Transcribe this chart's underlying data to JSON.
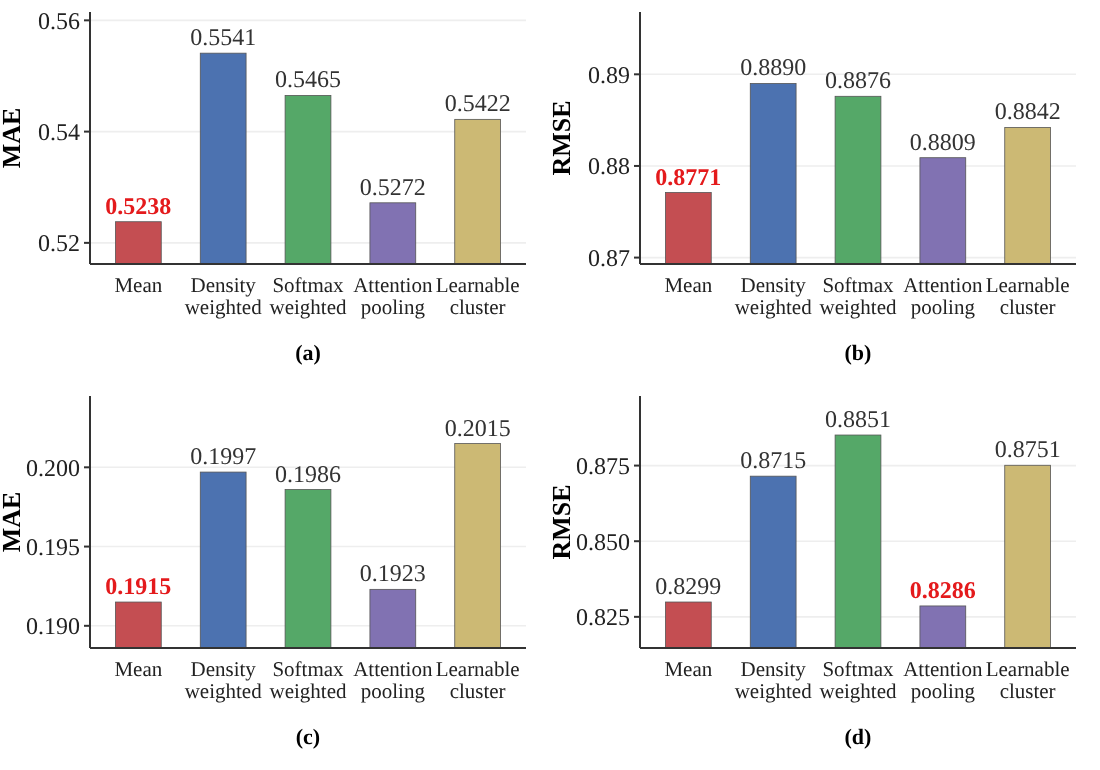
{
  "chart_data": [
    {
      "type": "bar",
      "ylabel": "MAE",
      "categories": [
        "Mean",
        "Density weighted",
        "Softmax weighted",
        "Attention pooling",
        "Learnable cluster"
      ],
      "values": [
        0.5238,
        0.5541,
        0.5465,
        0.5272,
        0.5422
      ],
      "colors": [
        "#c44e52",
        "#4c72b0",
        "#55a868",
        "#8172b2",
        "#ccb974"
      ],
      "ylim": [
        0.5162,
        0.5615
      ],
      "yticks": [
        {
          "value": 0.52,
          "label": "0.52"
        },
        {
          "value": 0.54,
          "label": "0.54"
        },
        {
          "value": 0.56,
          "label": "0.56"
        }
      ],
      "grid": "y",
      "data_labels": true,
      "annotations": [
        "(a)"
      ]
    },
    {
      "type": "bar",
      "ylabel": "RMSE",
      "categories": [
        "Mean",
        "Density weighted",
        "Softmax weighted",
        "Attention pooling",
        "Learnable cluster"
      ],
      "values": [
        0.8771,
        0.889,
        0.8876,
        0.8809,
        0.8842
      ],
      "value_labels": [
        "0.8771",
        "0.8890",
        "0.8876",
        "0.8809",
        "0.8842"
      ],
      "colors": [
        "#c44e52",
        "#4c72b0",
        "#55a868",
        "#8172b2",
        "#ccb974"
      ],
      "ylim": [
        0.8693,
        0.8968
      ],
      "yticks": [
        {
          "value": 0.87,
          "label": "0.87"
        },
        {
          "value": 0.88,
          "label": "0.88"
        },
        {
          "value": 0.89,
          "label": "0.89"
        }
      ],
      "grid": "y",
      "annotations": [
        "(b)"
      ]
    },
    {
      "type": "bar",
      "ylabel": "MAE",
      "categories": [
        "Mean",
        "Density weighted",
        "Softmax weighted",
        "Attention pooling",
        "Learnable cluster"
      ],
      "values": [
        0.1915,
        0.1997,
        0.1986,
        0.1923,
        0.2015
      ],
      "colors": [
        "#c44e52",
        "#4c72b0",
        "#55a868",
        "#8172b2",
        "#ccb974"
      ],
      "ylim": [
        0.1886,
        0.2045
      ],
      "yticks": [
        {
          "value": 0.19,
          "label": "0.190"
        },
        {
          "value": 0.195,
          "label": "0.195"
        },
        {
          "value": 0.2,
          "label": "0.200"
        }
      ],
      "grid": "y",
      "data_labels": true,
      "annotations": [
        "(c)"
      ]
    },
    {
      "type": "bar",
      "ylabel": "RMSE",
      "categories": [
        "Mean",
        "Density weighted",
        "Softmax weighted",
        "Attention pooling",
        "Learnable cluster"
      ],
      "values": [
        0.8299,
        0.8715,
        0.8851,
        0.8286,
        0.8751
      ],
      "colors": [
        "#c44e52",
        "#4c72b0",
        "#55a868",
        "#8172b2",
        "#ccb974"
      ],
      "ylim": [
        0.8147,
        0.898
      ],
      "yticks": [
        {
          "value": 0.825,
          "label": "0.825"
        },
        {
          "value": 0.85,
          "label": "0.850"
        },
        {
          "value": 0.875,
          "label": "0.875"
        }
      ],
      "grid": "y",
      "data_labels": true,
      "annotations": [
        "(d)"
      ]
    }
  ]
}
